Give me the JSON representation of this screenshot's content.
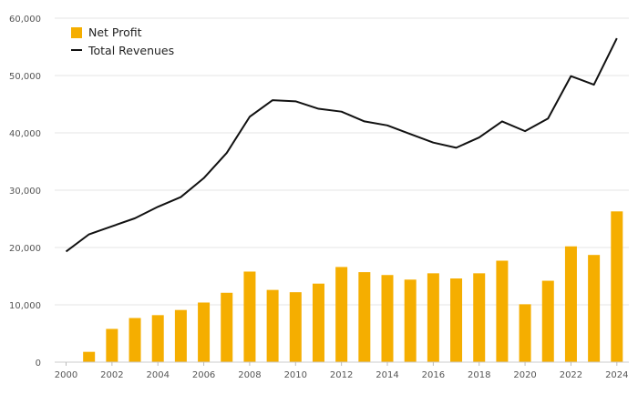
{
  "chart_data": {
    "type": "bar",
    "title": "",
    "xlabel": "",
    "ylabel": "",
    "ylim": [
      0,
      60000
    ],
    "y_ticks": [
      "0",
      "10,000",
      "20,000",
      "30,000",
      "40,000",
      "50,000",
      "60,000"
    ],
    "y_tick_values": [
      0,
      10000,
      20000,
      30000,
      40000,
      50000,
      60000
    ],
    "x_ticks": [
      "2000",
      "2002",
      "2004",
      "2006",
      "2008",
      "2010",
      "2012",
      "2014",
      "2016",
      "2018",
      "2020",
      "2022",
      "2024"
    ],
    "x": [
      2000,
      2001,
      2002,
      2003,
      2004,
      2005,
      2006,
      2007,
      2008,
      2009,
      2010,
      2011,
      2012,
      2013,
      2014,
      2015,
      2016,
      2017,
      2018,
      2019,
      2020,
      2021,
      2022,
      2023,
      2024
    ],
    "series": [
      {
        "name": "Net Profit",
        "type": "bar",
        "color": "#f5ae00",
        "values": [
          0,
          1800,
          5800,
          7700,
          8200,
          9100,
          10400,
          12100,
          15800,
          12600,
          12200,
          13700,
          16600,
          15700,
          15200,
          14400,
          15500,
          14600,
          15500,
          17700,
          10100,
          14200,
          20200,
          18700,
          26300
        ]
      },
      {
        "name": "Total Revenues",
        "type": "line",
        "color": "#111111",
        "values": [
          19300,
          22300,
          23700,
          25100,
          27100,
          28800,
          32100,
          36500,
          42800,
          45700,
          45500,
          44200,
          43700,
          42000,
          41300,
          39800,
          38300,
          37400,
          39200,
          42000,
          40300,
          42500,
          49900,
          48400,
          56500
        ]
      }
    ],
    "legend": {
      "position": "top-left",
      "entries": [
        "Net Profit",
        "Total Revenues"
      ]
    },
    "grid": true
  }
}
